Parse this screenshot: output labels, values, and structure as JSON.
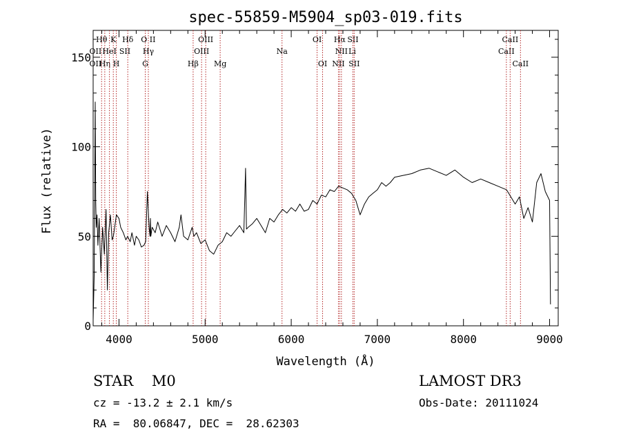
{
  "chart_data": {
    "type": "line",
    "title": "spec-55859-M5904_sp03-019.fits",
    "xlabel": "Wavelength (Å)",
    "ylabel": "Flux (relative)",
    "xlim": [
      3700,
      9100
    ],
    "ylim": [
      0,
      165
    ],
    "x_ticks": [
      4000,
      5000,
      6000,
      7000,
      8000,
      9000
    ],
    "y_ticks": [
      0,
      50,
      100,
      150
    ],
    "grid": false,
    "series": [
      {
        "name": "flux",
        "x": [
          3700,
          3712,
          3724,
          3730,
          3736,
          3745,
          3755,
          3770,
          3790,
          3810,
          3830,
          3850,
          3865,
          3880,
          3900,
          3920,
          3935,
          3950,
          3970,
          4000,
          4020,
          4050,
          4080,
          4100,
          4130,
          4150,
          4180,
          4200,
          4230,
          4260,
          4290,
          4310,
          4330,
          4350,
          4360,
          4365,
          4370,
          4385,
          4420,
          4450,
          4500,
          4550,
          4600,
          4650,
          4700,
          4720,
          4750,
          4800,
          4850,
          4870,
          4900,
          4950,
          5000,
          5050,
          5100,
          5150,
          5200,
          5250,
          5300,
          5350,
          5400,
          5450,
          5470,
          5480,
          5500,
          5550,
          5600,
          5650,
          5700,
          5750,
          5800,
          5850,
          5900,
          5950,
          6000,
          6050,
          6100,
          6150,
          6200,
          6250,
          6300,
          6350,
          6400,
          6450,
          6500,
          6550,
          6600,
          6650,
          6700,
          6750,
          6800,
          6850,
          6900,
          6950,
          7000,
          7050,
          7100,
          7150,
          7200,
          7300,
          7400,
          7500,
          7600,
          7700,
          7800,
          7900,
          8000,
          8100,
          8200,
          8300,
          8400,
          8500,
          8550,
          8600,
          8650,
          8700,
          8750,
          8800,
          8850,
          8900,
          8950,
          9000,
          9010
        ],
        "y": [
          3,
          28,
          125,
          70,
          55,
          62,
          45,
          60,
          30,
          55,
          40,
          65,
          20,
          52,
          62,
          48,
          50,
          55,
          62,
          60,
          55,
          52,
          48,
          50,
          47,
          52,
          45,
          50,
          48,
          44,
          45,
          47,
          75,
          55,
          50,
          60,
          50,
          55,
          52,
          58,
          50,
          56,
          52,
          47,
          55,
          62,
          50,
          48,
          55,
          50,
          52,
          46,
          48,
          42,
          40,
          45,
          47,
          52,
          50,
          53,
          56,
          52,
          88,
          54,
          55,
          57,
          60,
          56,
          52,
          60,
          58,
          62,
          65,
          63,
          66,
          64,
          68,
          64,
          65,
          70,
          68,
          73,
          72,
          76,
          75,
          78,
          77,
          76,
          74,
          70,
          62,
          68,
          72,
          74,
          76,
          80,
          78,
          80,
          83,
          84,
          85,
          87,
          88,
          86,
          84,
          87,
          83,
          80,
          82,
          80,
          78,
          76,
          72,
          68,
          72,
          60,
          66,
          58,
          80,
          85,
          75,
          70,
          12
        ]
      }
    ],
    "lines": [
      {
        "label": "Hθ",
        "x": 3798,
        "row": 1
      },
      {
        "label": "Hη",
        "x": 3835,
        "row": 3
      },
      {
        "label": "HeI",
        "x": 3889,
        "row": 2
      },
      {
        "label": "K",
        "x": 3934,
        "row": 1
      },
      {
        "label": "H",
        "x": 3969,
        "row": 3
      },
      {
        "label": "Hδ",
        "x": 4102,
        "row": 1
      },
      {
        "label": "G",
        "x": 4305,
        "row": 3
      },
      {
        "label": "Hγ",
        "x": 4341,
        "row": 2
      },
      {
        "label": "Hβ",
        "x": 4861,
        "row": 3
      },
      {
        "label": "OIII",
        "x": 4959,
        "row": 2
      },
      {
        "label": "OIII",
        "x": 5007,
        "row": 1
      },
      {
        "label": "Mg",
        "x": 5175,
        "row": 3
      },
      {
        "label": "Na",
        "x": 5893,
        "row": 2
      },
      {
        "label": "OI",
        "x": 6300,
        "row": 1
      },
      {
        "label": "OI",
        "x": 6364,
        "row": 3
      },
      {
        "label": "NII",
        "x": 6548,
        "row": 3
      },
      {
        "label": "Hα",
        "x": 6563,
        "row": 1
      },
      {
        "label": "NII",
        "x": 6583,
        "row": 2
      },
      {
        "label": "SII",
        "x": 6716,
        "row": 1
      },
      {
        "label": "SII",
        "x": 6731,
        "row": 3
      },
      {
        "label": "CaII",
        "x": 8498,
        "row": 2
      },
      {
        "label": "CaII",
        "x": 8542,
        "row": 1
      },
      {
        "label": "CaII",
        "x": 8662,
        "row": 3
      }
    ],
    "overlap_labels": [
      {
        "label": "OII",
        "x": 3727,
        "row": 2
      },
      {
        "label": "OII",
        "x": 3727,
        "row": 3
      },
      {
        "label": "SII",
        "x": 4068,
        "row": 2
      },
      {
        "label": "O II",
        "x": 4340,
        "row": 1
      },
      {
        "label": "Li",
        "x": 6708,
        "row": 2
      }
    ]
  },
  "info": {
    "class": "STAR    M0",
    "survey": "LAMOST DR3",
    "cz": "cz = -13.2 ± 2.1 km/s",
    "obs_date": "Obs-Date: 20111024",
    "radec": "RA =  80.06847, DEC =  28.62303"
  }
}
